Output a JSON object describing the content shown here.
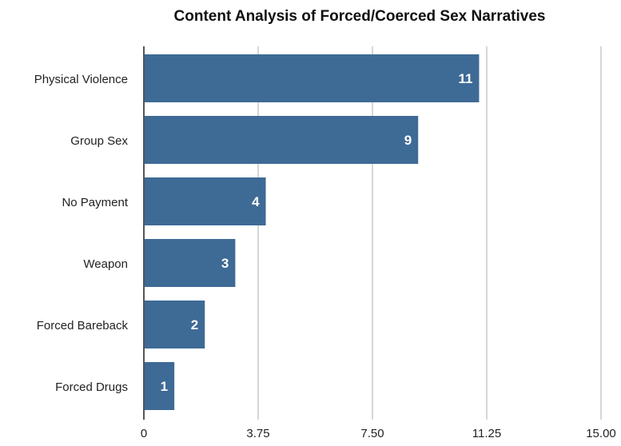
{
  "chart_data": {
    "type": "bar",
    "orientation": "horizontal",
    "title": "Content Analysis of Forced/Coerced Sex Narratives",
    "xlabel": "",
    "ylabel": "",
    "categories": [
      "Physical Violence",
      "Group Sex",
      "No Payment",
      "Weapon",
      "Forced Bareback",
      "Forced Drugs"
    ],
    "values": [
      11,
      9,
      4,
      3,
      2,
      1
    ],
    "data_labels": [
      "11",
      "9",
      "4",
      "3",
      "2",
      "1"
    ],
    "xlim": [
      0,
      15
    ],
    "x_ticks": [
      0,
      3.75,
      7.5,
      11.25,
      15
    ],
    "x_tick_labels": [
      "0",
      "3.75",
      "7.50",
      "11.25",
      "15.00"
    ],
    "grid": true,
    "legend": "none",
    "colors": {
      "bar": "#3e6a96",
      "grid": "#c8c8c8",
      "axis": "#555555",
      "data_label": "#ffffff",
      "text": "#222222"
    }
  }
}
